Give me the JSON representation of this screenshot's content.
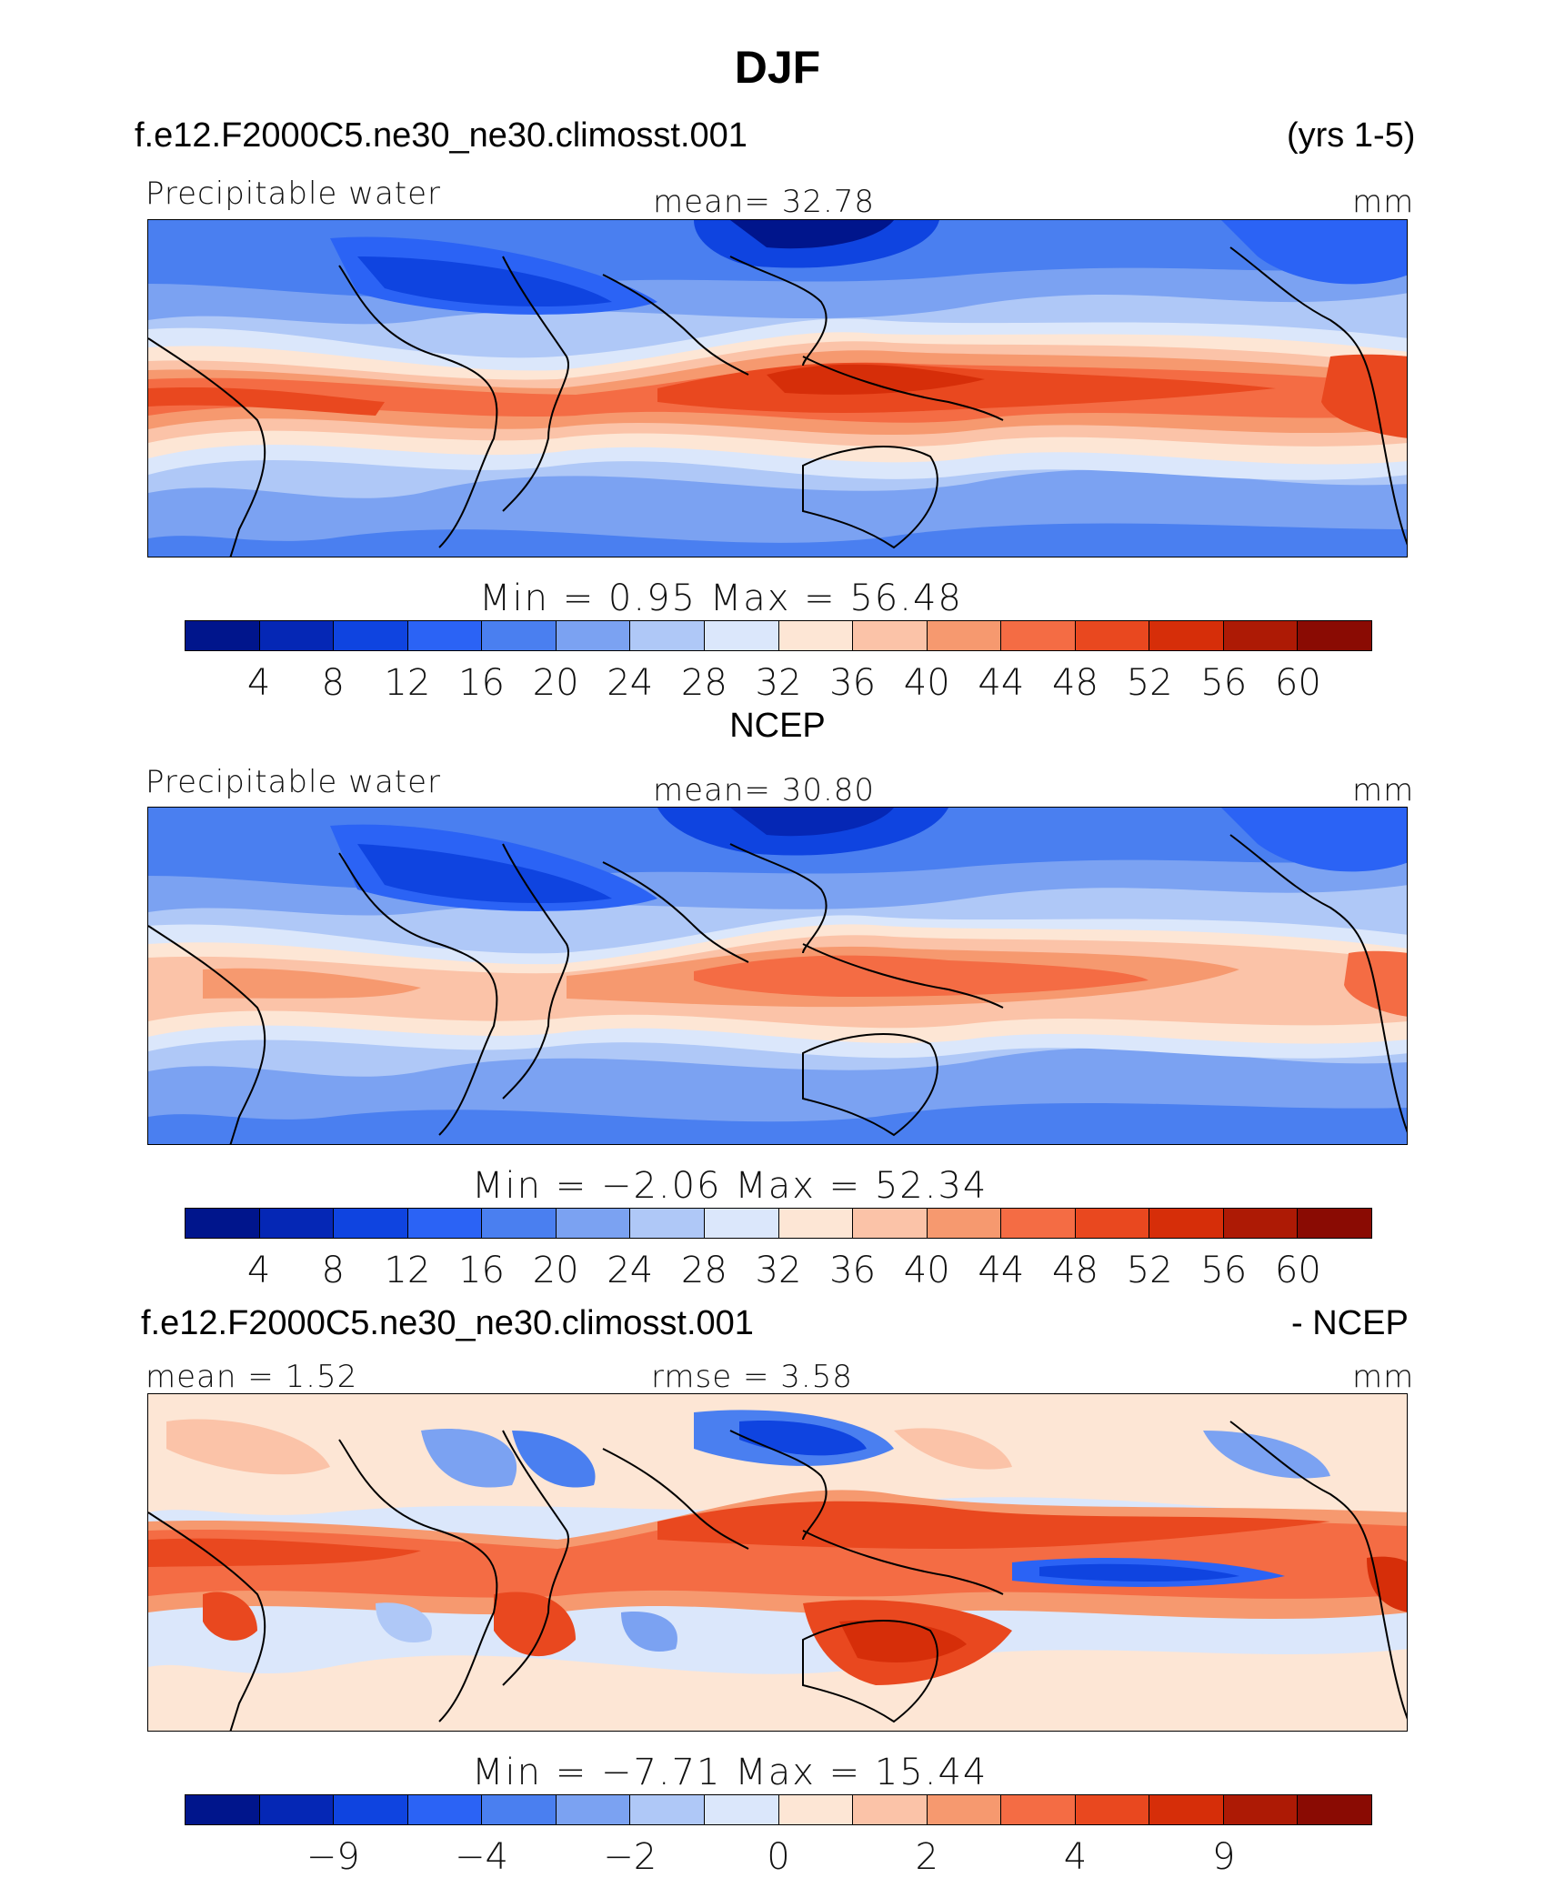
{
  "title": "DJF",
  "palette": [
    "#00158c",
    "#0527b5",
    "#0f44e0",
    "#2b63f5",
    "#4a7ff0",
    "#7ba2f2",
    "#afc8f7",
    "#dbe7fb",
    "#fde6d5",
    "#fbc3a8",
    "#f6996f",
    "#f46c44",
    "#e9481f",
    "#d62e09",
    "#ad1a05",
    "#8a0b03"
  ],
  "panels": [
    {
      "header_left": "f.e12.F2000C5.ne30_ne30.climosst.001",
      "header_right": "(yrs 1-5)",
      "variable": "Precipitable water",
      "stat_center": "mean=   32.78",
      "units": "mm",
      "minmax": "Min  =     0.95  Max  =    56.48",
      "colorbar_ticks": [
        "4",
        "8",
        "12",
        "16",
        "20",
        "24",
        "28",
        "32",
        "36",
        "40",
        "44",
        "48",
        "52",
        "56",
        "60"
      ]
    },
    {
      "header_left": "NCEP",
      "header_right": "",
      "variable": "Precipitable water",
      "stat_center": "mean=   30.80",
      "units": "mm",
      "minmax": "Min  =   −2.06  Max  =    52.34",
      "colorbar_ticks": [
        "4",
        "8",
        "12",
        "16",
        "20",
        "24",
        "28",
        "32",
        "36",
        "40",
        "44",
        "48",
        "52",
        "56",
        "60"
      ]
    },
    {
      "header_left": "f.e12.F2000C5.ne30_ne30.climosst.001",
      "header_right": "- NCEP",
      "variable": "mean  =     1.52",
      "stat_center": "rmse  =     3.58",
      "units": "mm",
      "minmax": "Min  =   −7.71  Max  =    15.44",
      "colorbar_ticks": [
        "−9",
        "−4",
        "−2",
        "0",
        "2",
        "4",
        "9"
      ]
    }
  ]
}
